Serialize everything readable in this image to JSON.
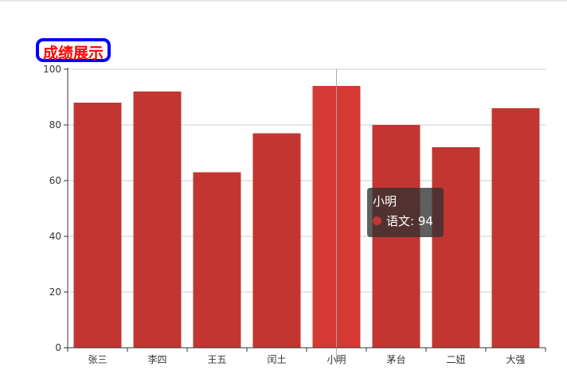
{
  "chart_data": {
    "type": "bar",
    "title": "成绩展示",
    "categories": [
      "张三",
      "李四",
      "王五",
      "闰土",
      "小明",
      "茅台",
      "二妞",
      "大强"
    ],
    "series": [
      {
        "name": "语文",
        "values": [
          88,
          92,
          63,
          77,
          94,
          80,
          72,
          86
        ]
      }
    ],
    "ylim": [
      0,
      100
    ],
    "yticks": [
      0,
      20,
      40,
      60,
      80,
      100
    ],
    "grid": true,
    "highlighted_index": 4
  },
  "tooltip": {
    "category": "小明",
    "series_name": "语文",
    "value": "94",
    "text": "语文: 94"
  },
  "colors": {
    "bar": "#c23531",
    "bar_highlight": "#d43a33",
    "grid": "#cccccc",
    "axis": "#333333",
    "title_text": "#ff0000",
    "title_border": "#0000ff"
  }
}
